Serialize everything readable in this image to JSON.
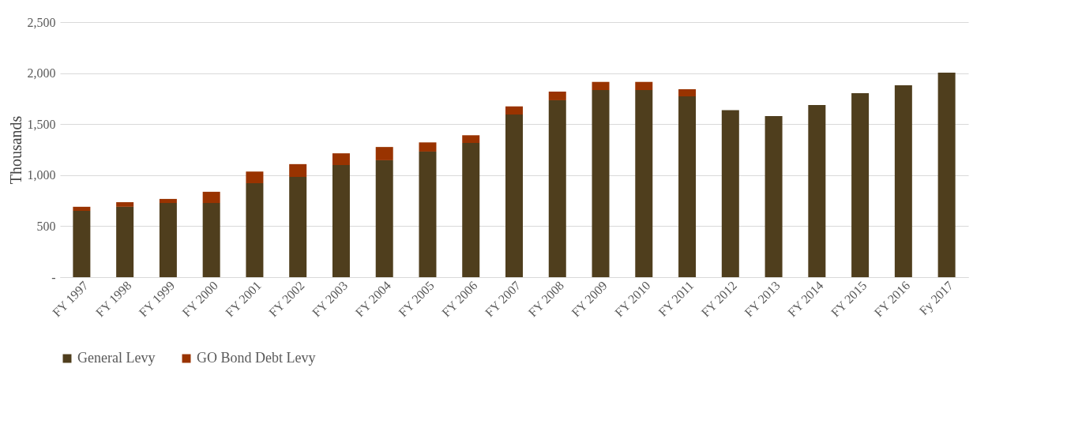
{
  "chart_data": {
    "type": "bar",
    "stacked": true,
    "ylabel": "Thousands",
    "categories": [
      "FY 1997",
      "FY 1998",
      "FY 1999",
      "FY 2000",
      "FY 2001",
      "FY 2002",
      "FY 2003",
      "FY 2004",
      "FY 2005",
      "FY 2006",
      "FY 2007",
      "FY 2008",
      "FY 2009",
      "FY 2010",
      "FY 2011",
      "FY 2012",
      "FY 2013",
      "FY 2014",
      "FY 2015",
      "FY 2016",
      "Fy 2017"
    ],
    "series": [
      {
        "name": "General Levy",
        "color": "#4f3e1d",
        "values": [
          650,
          690,
          727,
          727,
          921,
          983,
          1099,
          1146,
          1231,
          1316,
          1594,
          1734,
          1834,
          1834,
          1772,
          1637,
          1579,
          1687,
          1803,
          1881,
          2005
        ]
      },
      {
        "name": "GO Bond Debt Levy",
        "color": "#993300",
        "values": [
          40,
          45,
          40,
          110,
          115,
          125,
          115,
          130,
          90,
          75,
          80,
          85,
          80,
          80,
          70,
          null,
          null,
          null,
          null,
          null,
          null
        ]
      }
    ],
    "ylim": [
      0,
      2500
    ],
    "yticks": [
      {
        "value": 0,
        "label": "-"
      },
      {
        "value": 500,
        "label": "500"
      },
      {
        "value": 1000,
        "label": "1,000"
      },
      {
        "value": 1500,
        "label": "1,500"
      },
      {
        "value": 2000,
        "label": "2,000"
      },
      {
        "value": 2500,
        "label": "2,500"
      }
    ],
    "grid": "y",
    "legend": "bottom"
  }
}
